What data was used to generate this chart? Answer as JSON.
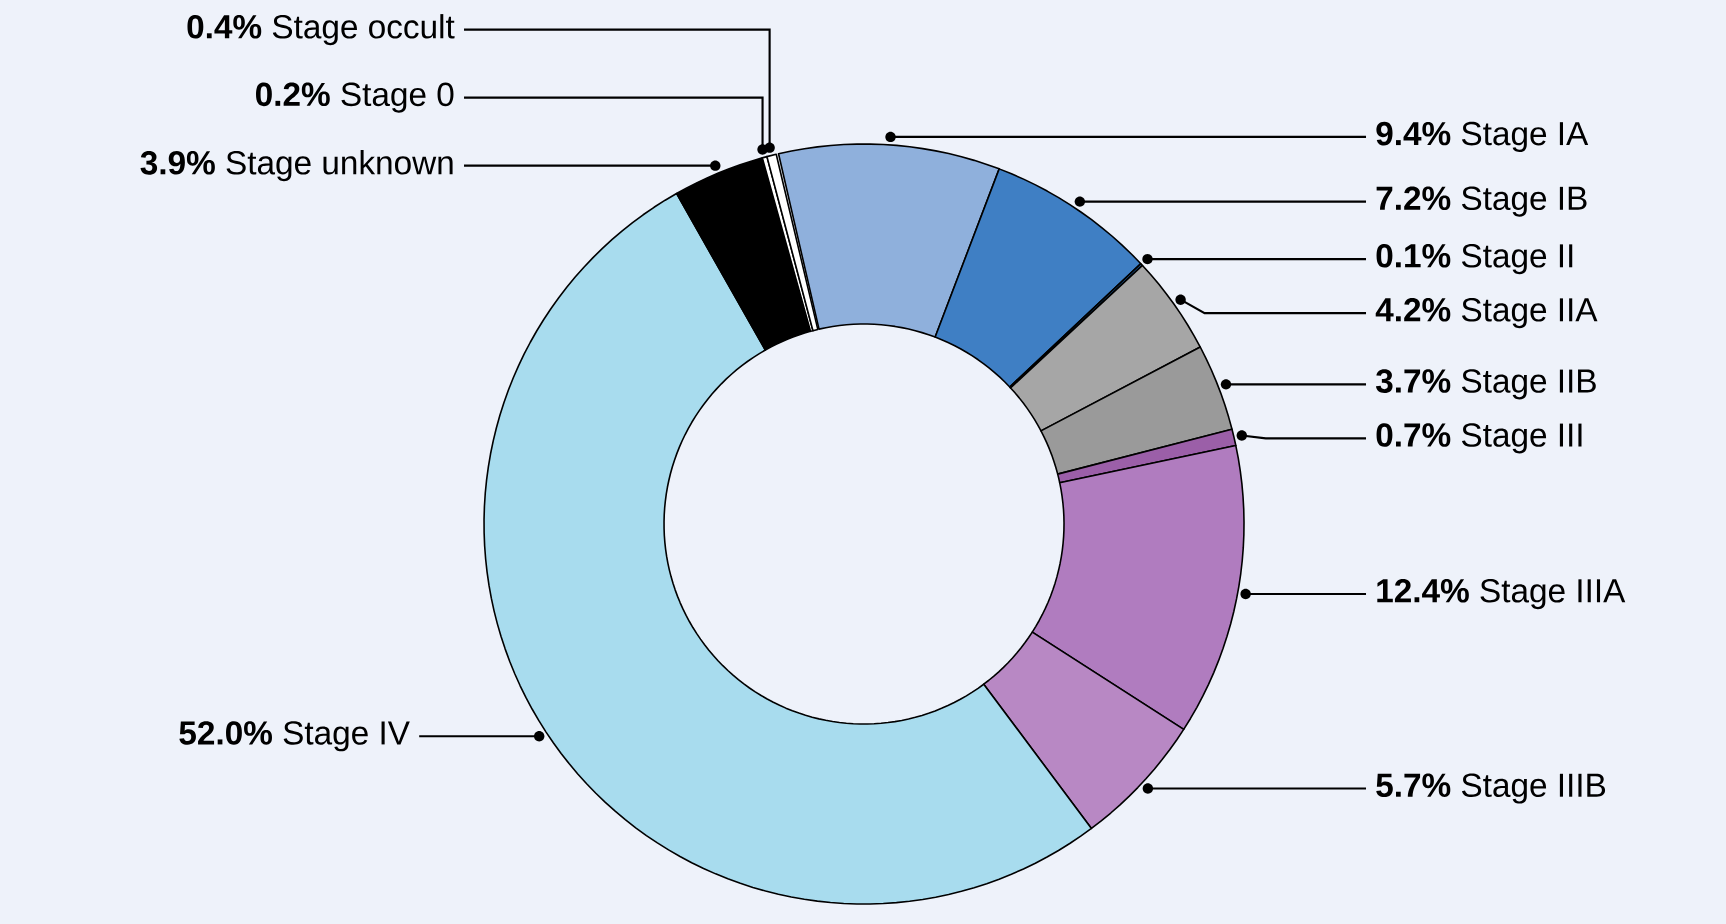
{
  "chart_data": {
    "type": "donut",
    "categories": [
      "Stage IA",
      "Stage IB",
      "Stage II",
      "Stage IIA",
      "Stage IIB",
      "Stage III",
      "Stage IIIA",
      "Stage IIIB",
      "Stage IV",
      "Stage unknown",
      "Stage 0",
      "Stage occult"
    ],
    "values": [
      9.4,
      7.2,
      0.1,
      4.2,
      3.7,
      0.7,
      12.4,
      5.7,
      52.0,
      3.9,
      0.2,
      0.4
    ],
    "colors": [
      "#8fb0dc",
      "#3f7fc4",
      "#1f5fa0",
      "#a6a6a6",
      "#9a9a9a",
      "#9b5fa8",
      "#b07cbf",
      "#b888c4",
      "#a8dcee",
      "#000000",
      "#ffffff",
      "#ffffff"
    ],
    "value_labels": [
      "9.4%",
      "7.2%",
      "0.1%",
      "4.2%",
      "3.7%",
      "0.7%",
      "12.4%",
      "5.7%",
      "52.0%",
      "3.9%",
      "0.2%",
      "0.4%"
    ]
  }
}
